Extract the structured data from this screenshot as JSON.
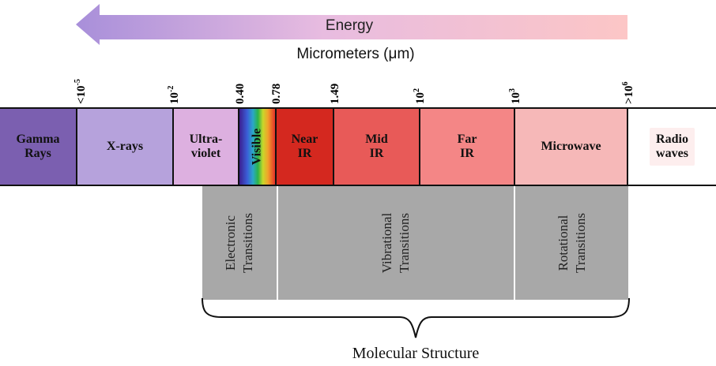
{
  "energy_label": "Energy",
  "axis_title": "Micrometers (μm)",
  "ticks": [
    {
      "base": "<10",
      "exp": "-5"
    },
    {
      "base": "10",
      "exp": "-2"
    },
    {
      "base": "0.40",
      "exp": ""
    },
    {
      "base": "0.78",
      "exp": ""
    },
    {
      "base": "1.49",
      "exp": ""
    },
    {
      "base": "10",
      "exp": "2"
    },
    {
      "base": "10",
      "exp": "3"
    },
    {
      "base": ">10",
      "exp": "6"
    }
  ],
  "bands": [
    {
      "line1": "Gamma",
      "line2": "Rays",
      "color": "#7b5fb0"
    },
    {
      "line1": "X-rays",
      "line2": "",
      "color": "#b6a2dc"
    },
    {
      "line1": "Ultra-",
      "line2": "violet",
      "color": "#ddb0e0"
    },
    {
      "line1": "Visible",
      "line2": "",
      "color": "spectrum"
    },
    {
      "line1": "Near",
      "line2": "IR",
      "color": "#d4281f"
    },
    {
      "line1": "Mid",
      "line2": "IR",
      "color": "#e85a58"
    },
    {
      "line1": "Far",
      "line2": "IR",
      "color": "#f48686"
    },
    {
      "line1": "Microwave",
      "line2": "",
      "color": "#f6b8b8"
    },
    {
      "line1": "Radio",
      "line2": "waves",
      "color": "#fdeeee"
    }
  ],
  "transitions": [
    {
      "line1": "Electronic",
      "line2": "Transitions"
    },
    {
      "line1": "Vibrational",
      "line2": "Transitions"
    },
    {
      "line1": "Rotational",
      "line2": "Transitions"
    }
  ],
  "brace_label": "Molecular Structure",
  "colors": {
    "arrow_start": "#a88fda",
    "arrow_end": "#fcc6c6",
    "transition_fill": "#a8a8a8"
  }
}
